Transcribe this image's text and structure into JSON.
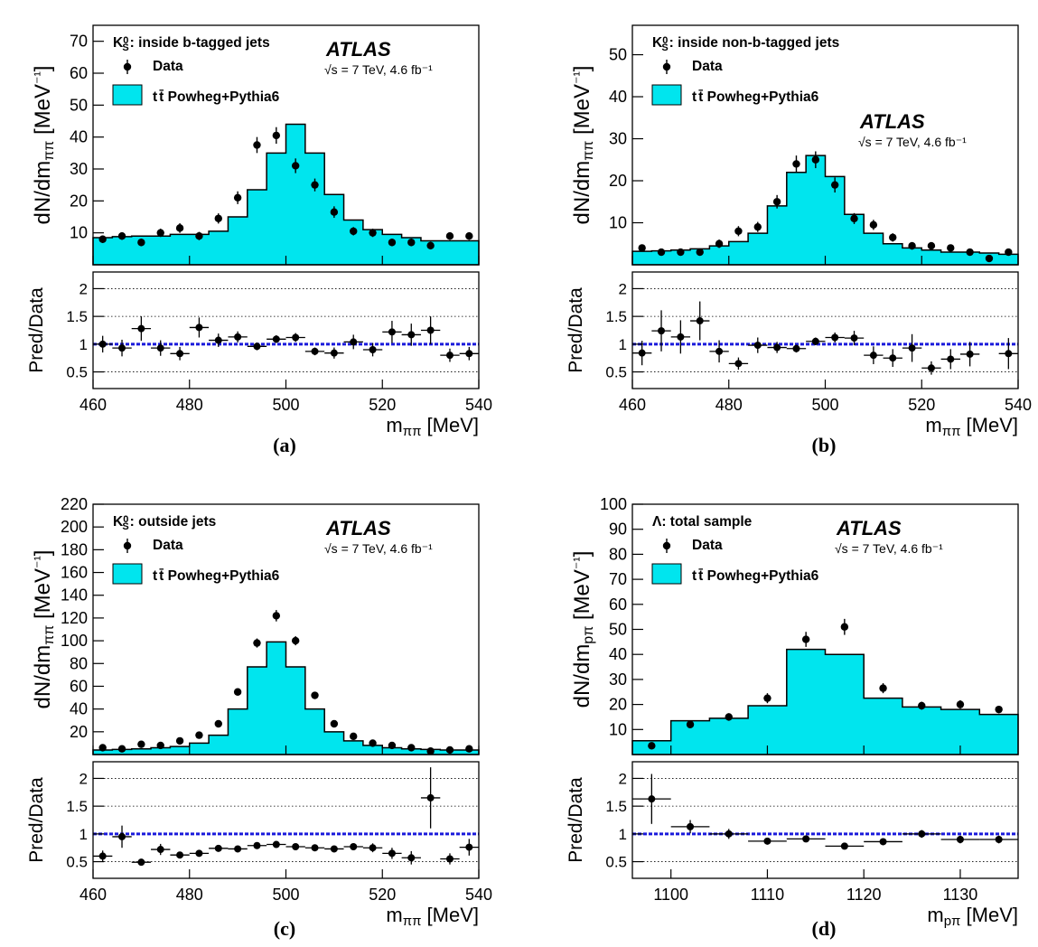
{
  "colors": {
    "mc_fill": "#00e5ee",
    "ratio_line": "#1a1adb",
    "data": "#000000"
  },
  "ratio_ylabel": "Pred/Data",
  "chart_data": [
    {
      "id": "a",
      "caption": "(a)",
      "type": "histogram",
      "title": "K⁰S: inside b-tagged jets",
      "legend": [
        "Data",
        "t t̄ Powheg+Pythia6"
      ],
      "legend_placement": "top-left",
      "atlas": "ATLAS",
      "lumi": "√s = 7 TeV, 4.6 fb⁻¹",
      "xlabel": "mππ [MeV]",
      "ylabel": "dN/dmππ [MeV⁻¹]",
      "xlim": [
        460,
        540
      ],
      "ylim": [
        0,
        75
      ],
      "yticks": [
        10,
        20,
        30,
        40,
        50,
        60,
        70
      ],
      "xticks": [
        460,
        480,
        500,
        520,
        540
      ],
      "ratio_ylim": [
        0.2,
        2.3
      ],
      "bin_edges": [
        460,
        464,
        468,
        472,
        476,
        480,
        484,
        488,
        492,
        496,
        500,
        504,
        508,
        512,
        516,
        520,
        524,
        528,
        532,
        536,
        540
      ],
      "mc": [
        8.5,
        8.8,
        9,
        9,
        9.5,
        9.5,
        10.5,
        15,
        23.5,
        35,
        44,
        35,
        22,
        14,
        11,
        9.5,
        8.5,
        7.5,
        7.5,
        7.5
      ],
      "data": [
        8,
        9,
        7,
        10,
        11.5,
        9,
        14.5,
        21,
        37.5,
        40.5,
        31,
        25,
        16.5,
        10.5,
        10,
        7,
        7,
        6,
        9,
        9
      ],
      "data_err": [
        1.2,
        1.2,
        1.2,
        1.3,
        1.5,
        1.3,
        1.6,
        2,
        2.5,
        2.6,
        2.3,
        2,
        1.8,
        1.3,
        1.3,
        1.2,
        1.2,
        1.2,
        1.2,
        1.2
      ],
      "ratio": [
        1,
        0.93,
        1.28,
        0.93,
        0.83,
        1.3,
        1.07,
        1.13,
        0.96,
        1.09,
        1.12,
        0.87,
        0.84,
        1.04,
        0.9,
        1.22,
        1.17,
        1.25,
        0.8,
        0.83
      ],
      "ratio_err": [
        0.15,
        0.15,
        0.22,
        0.14,
        0.12,
        0.18,
        0.12,
        0.1,
        0.07,
        0.07,
        0.08,
        0.07,
        0.1,
        0.13,
        0.12,
        0.2,
        0.2,
        0.25,
        0.12,
        0.12
      ]
    },
    {
      "id": "b",
      "caption": "(b)",
      "type": "histogram",
      "title": "K⁰S: inside non-b-tagged jets",
      "legend": [
        "Data",
        "t t̄ Powheg+Pythia6"
      ],
      "legend_placement": "top-left",
      "atlas": "ATLAS",
      "lumi": "√s = 7 TeV, 4.6 fb⁻¹",
      "xlabel": "mππ [MeV]",
      "ylabel": "dN/dmππ [MeV⁻¹]",
      "xlim": [
        460,
        540
      ],
      "ylim": [
        0,
        57
      ],
      "yticks": [
        10,
        20,
        30,
        40,
        50
      ],
      "xticks": [
        460,
        480,
        500,
        520,
        540
      ],
      "ratio_ylim": [
        0.2,
        2.3
      ],
      "bin_edges": [
        460,
        464,
        468,
        472,
        476,
        480,
        484,
        488,
        492,
        496,
        500,
        504,
        508,
        512,
        516,
        520,
        524,
        528,
        532,
        536,
        540
      ],
      "mc": [
        3.2,
        3.3,
        3.5,
        3.8,
        4.5,
        5.5,
        7.5,
        14,
        22,
        26,
        21,
        12,
        7.5,
        5,
        4,
        3.5,
        3,
        3,
        2.8,
        2.5
      ],
      "data": [
        4,
        3,
        3,
        3,
        5,
        8,
        9,
        15,
        24,
        25,
        19,
        11,
        9.5,
        6.5,
        4.5,
        4.5,
        4,
        3,
        1.5,
        3
      ],
      "data_err": [
        0.8,
        0.8,
        0.8,
        0.8,
        1,
        1.2,
        1.2,
        1.6,
        2,
        2,
        1.8,
        1.3,
        1.2,
        1,
        0.9,
        0.9,
        0.8,
        0.8,
        0.6,
        0.8
      ],
      "ratio": [
        0.84,
        1.24,
        1.13,
        1.42,
        0.87,
        0.65,
        0.98,
        0.94,
        0.92,
        1.05,
        1.12,
        1.11,
        0.8,
        0.75,
        0.93,
        0.57,
        0.73,
        0.82,
        null,
        0.83
      ],
      "ratio_err": [
        0.22,
        0.37,
        0.3,
        0.35,
        0.2,
        0.11,
        0.14,
        0.1,
        0.07,
        0.07,
        0.09,
        0.13,
        0.16,
        0.16,
        0.25,
        0.12,
        0.18,
        0.22,
        null,
        0.28
      ]
    },
    {
      "id": "c",
      "caption": "(c)",
      "type": "histogram",
      "title": "K⁰S: outside jets",
      "legend": [
        "Data",
        "t t̄ Powheg+Pythia6"
      ],
      "legend_placement": "top-left",
      "atlas": "ATLAS",
      "lumi": "√s = 7 TeV, 4.6 fb⁻¹",
      "xlabel": "mππ [MeV]",
      "ylabel": "dN/dmππ [MeV⁻¹]",
      "xlim": [
        460,
        540
      ],
      "ylim": [
        0,
        220
      ],
      "yticks": [
        20,
        40,
        60,
        80,
        100,
        120,
        140,
        160,
        180,
        200,
        220
      ],
      "xticks": [
        460,
        480,
        500,
        520,
        540
      ],
      "ratio_ylim": [
        0.2,
        2.3
      ],
      "bin_edges": [
        460,
        464,
        468,
        472,
        476,
        480,
        484,
        488,
        492,
        496,
        500,
        504,
        508,
        512,
        516,
        520,
        524,
        528,
        532,
        536,
        540
      ],
      "mc": [
        4,
        4.5,
        5,
        6,
        7,
        10,
        17,
        40,
        77,
        99,
        77,
        40,
        20,
        12,
        8,
        6,
        5,
        4.5,
        4,
        4
      ],
      "data": [
        6,
        5,
        9,
        8,
        12,
        17,
        27,
        55,
        98,
        122,
        100,
        52,
        27,
        16,
        10,
        8,
        6,
        3,
        4,
        5
      ],
      "data_err": [
        1,
        1,
        1.2,
        1.2,
        1.5,
        1.8,
        2,
        3,
        4,
        5,
        4,
        3,
        2,
        1.6,
        1.3,
        1.2,
        1,
        1,
        1,
        1
      ],
      "ratio": [
        0.6,
        0.95,
        0.49,
        0.72,
        0.62,
        0.65,
        0.74,
        0.73,
        0.79,
        0.81,
        0.77,
        0.75,
        0.73,
        0.77,
        0.75,
        0.65,
        0.57,
        1.65,
        0.55,
        0.76
      ],
      "ratio_err": [
        0.1,
        0.2,
        0.06,
        0.1,
        0.06,
        0.05,
        0.04,
        0.03,
        0.02,
        0.02,
        0.02,
        0.03,
        0.04,
        0.06,
        0.08,
        0.1,
        0.12,
        0.55,
        0.1,
        0.15
      ]
    },
    {
      "id": "d",
      "caption": "(d)",
      "type": "histogram",
      "title": "Λ: total sample",
      "legend": [
        "Data",
        "t t̄ Powheg+Pythia6"
      ],
      "legend_placement": "top-left",
      "atlas": "ATLAS",
      "lumi": "√s = 7 TeV, 4.6 fb⁻¹",
      "xlabel": "mpπ [MeV]",
      "ylabel": "dN/dmpπ [MeV⁻¹]",
      "xlim": [
        1096,
        1136
      ],
      "ylim": [
        0,
        100
      ],
      "yticks": [
        10,
        20,
        30,
        40,
        50,
        60,
        70,
        80,
        90,
        100
      ],
      "xticks": [
        1100,
        1110,
        1120,
        1130
      ],
      "ratio_ylim": [
        0.2,
        2.3
      ],
      "bin_edges": [
        1096,
        1100,
        1104,
        1108,
        1112,
        1116,
        1120,
        1124,
        1128,
        1132,
        1136
      ],
      "mc": [
        5.5,
        13.5,
        14.5,
        19.5,
        42,
        40,
        22.5,
        19,
        18,
        16
      ],
      "data": [
        3.5,
        12,
        15,
        22.5,
        46,
        51,
        26.5,
        19.5,
        20,
        18
      ],
      "data_err": [
        0.8,
        1.3,
        1.5,
        2,
        3,
        3.2,
        2,
        1.6,
        1.7,
        1.5
      ],
      "ratio": [
        1.63,
        1.13,
        1,
        0.87,
        0.91,
        0.78,
        0.86,
        1,
        0.9,
        0.9
      ],
      "ratio_err": [
        0.45,
        0.12,
        0.09,
        0.06,
        0.05,
        0.04,
        0.05,
        0.07,
        0.07,
        0.07
      ]
    }
  ]
}
